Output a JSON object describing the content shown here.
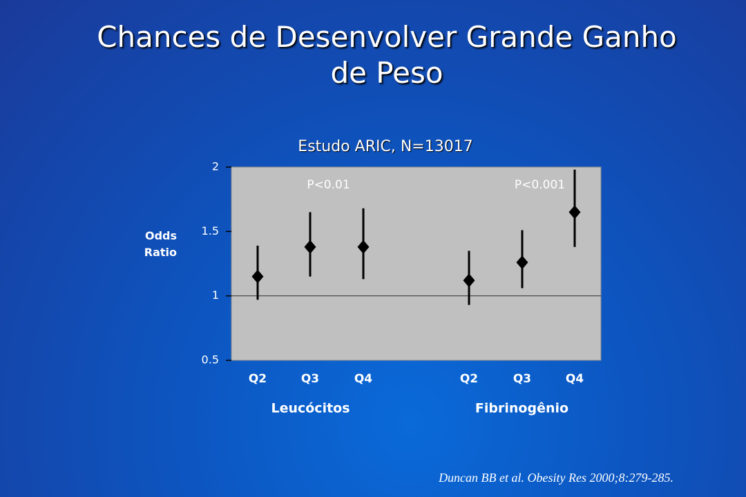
{
  "chart_data": {
    "type": "dot-interval",
    "title": "Chances de Desenvolver Grande Ganho de Peso",
    "subtitle": "Estudo ARIC, N=13017",
    "ylabel": "Odds Ratio",
    "ylim": [
      0.5,
      2
    ],
    "yticks": [
      0.5,
      1,
      1.5,
      2
    ],
    "reference_line": 1,
    "color": "#000000",
    "groups": [
      {
        "name": "Leucócitos",
        "annotation": "P<0.01",
        "categories": [
          "Q2",
          "Q3",
          "Q4"
        ],
        "values": [
          1.15,
          1.38,
          1.38
        ],
        "low": [
          0.97,
          1.15,
          1.13
        ],
        "high": [
          1.39,
          1.65,
          1.68
        ]
      },
      {
        "name": "Fibrinogênio",
        "annotation": "P<0.001",
        "categories": [
          "Q2",
          "Q3",
          "Q4"
        ],
        "values": [
          1.12,
          1.26,
          1.65
        ],
        "low": [
          0.93,
          1.06,
          1.38
        ],
        "high": [
          1.35,
          1.51,
          1.98
        ]
      }
    ],
    "citation": "Duncan BB et al. Obesity Res 2000;8:279-285."
  }
}
